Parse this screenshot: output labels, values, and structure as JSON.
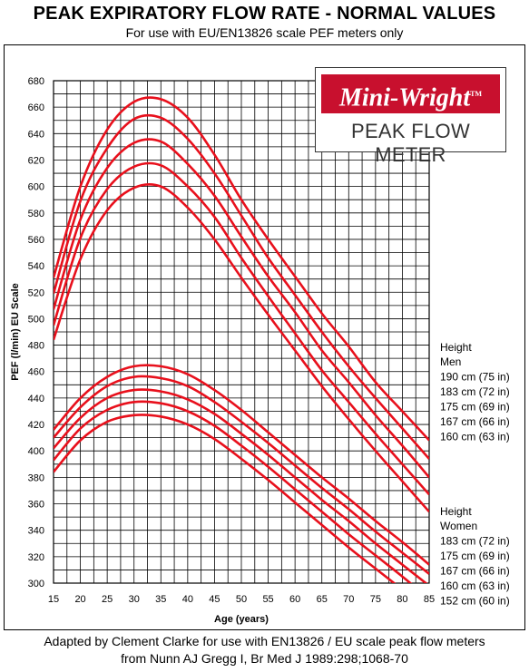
{
  "header": {
    "title": "PEAK EXPIRATORY FLOW RATE - NORMAL VALUES",
    "subtitle": "For use with EU/EN13826 scale PEF meters only"
  },
  "logo": {
    "brand": "Mini-Wright",
    "trademark": "TM",
    "product": "PEAK FLOW METER"
  },
  "footer": {
    "line1": "Adapted by Clement Clarke for use with EN13826 / EU scale peak flow meters",
    "line2": "from Nunn AJ Gregg I, Br Med J 1989:298;1068-70"
  },
  "colors": {
    "curve": "#e8101c",
    "grid": "#000000",
    "brand": "#c8102e"
  },
  "chart_data": {
    "type": "line",
    "title": "PEAK EXPIRATORY FLOW RATE - NORMAL VALUES",
    "xlabel": "Age (years)",
    "ylabel": "PEF (l/min) EU Scale",
    "xlim": [
      15,
      85
    ],
    "ylim": [
      300,
      680
    ],
    "x_ticks": [
      15,
      20,
      25,
      30,
      35,
      40,
      45,
      50,
      55,
      60,
      65,
      70,
      75,
      80,
      85
    ],
    "y_ticks": [
      300,
      320,
      340,
      360,
      380,
      400,
      420,
      440,
      460,
      480,
      500,
      520,
      540,
      560,
      580,
      600,
      620,
      640,
      660,
      680
    ],
    "grid": true,
    "x": [
      15,
      20,
      25,
      30,
      35,
      40,
      45,
      50,
      55,
      60,
      65,
      70,
      75,
      80,
      85
    ],
    "legend_groups": [
      {
        "heading": [
          "Height",
          "Men"
        ],
        "entries": [
          "190 cm (75 in)",
          "183 cm (72 in)",
          "175 cm (69 in)",
          "167 cm (66 in)",
          "160 cm (63 in)"
        ]
      },
      {
        "heading": [
          "Height",
          "Women"
        ],
        "entries": [
          "183 cm (72 in)",
          "175 cm (69 in)",
          "167 cm (66 in)",
          "160 cm (63 in)",
          "152 cm (60 in)"
        ]
      }
    ],
    "series": [
      {
        "name": "190 cm (75 in)",
        "group": "Men",
        "values": [
          531,
          600,
          643,
          664,
          666,
          652,
          624,
          590,
          560,
          532,
          504,
          479,
          452,
          430,
          408
        ]
      },
      {
        "name": "183 cm (72 in)",
        "group": "Men",
        "values": [
          519,
          589,
          629,
          651,
          652,
          636,
          610,
          578,
          546,
          518,
          490,
          464,
          440,
          417,
          394
        ]
      },
      {
        "name": "175 cm (69 in)",
        "group": "Men",
        "values": [
          507,
          575,
          614,
          633,
          634,
          617,
          593,
          562,
          532,
          505,
          476,
          452,
          427,
          404,
          380
        ]
      },
      {
        "name": "167 cm (66 in)",
        "group": "Men",
        "values": [
          495,
          561,
          598,
          615,
          616,
          600,
          577,
          546,
          517,
          489,
          461,
          437,
          413,
          390,
          367
        ]
      },
      {
        "name": "160 cm (63 in)",
        "group": "Men",
        "values": [
          484,
          545,
          582,
          599,
          600,
          584,
          560,
          531,
          503,
          476,
          449,
          424,
          400,
          377,
          354
        ]
      },
      {
        "name": "183 cm (72 in)",
        "group": "Women",
        "values": [
          416,
          440,
          456,
          464,
          464,
          458,
          446,
          431,
          414,
          397,
          380,
          364,
          347,
          331,
          314
        ]
      },
      {
        "name": "175 cm (69 in)",
        "group": "Women",
        "values": [
          410,
          433,
          449,
          456,
          455,
          449,
          437,
          422,
          406,
          389,
          372,
          356,
          339,
          323,
          307
        ]
      },
      {
        "name": "167 cm (66 in)",
        "group": "Women",
        "values": [
          402,
          425,
          440,
          446,
          445,
          439,
          428,
          413,
          397,
          380,
          363,
          347,
          330,
          314,
          298
        ]
      },
      {
        "name": "160 cm (63 in)",
        "group": "Women",
        "values": [
          393,
          417,
          431,
          437,
          436,
          430,
          419,
          404,
          388,
          371,
          354,
          337,
          321,
          305,
          288
        ]
      },
      {
        "name": "152 cm (60 in)",
        "group": "Women",
        "values": [
          384,
          408,
          422,
          427,
          426,
          420,
          409,
          394,
          378,
          361,
          344,
          327,
          311,
          295,
          278
        ]
      }
    ]
  }
}
